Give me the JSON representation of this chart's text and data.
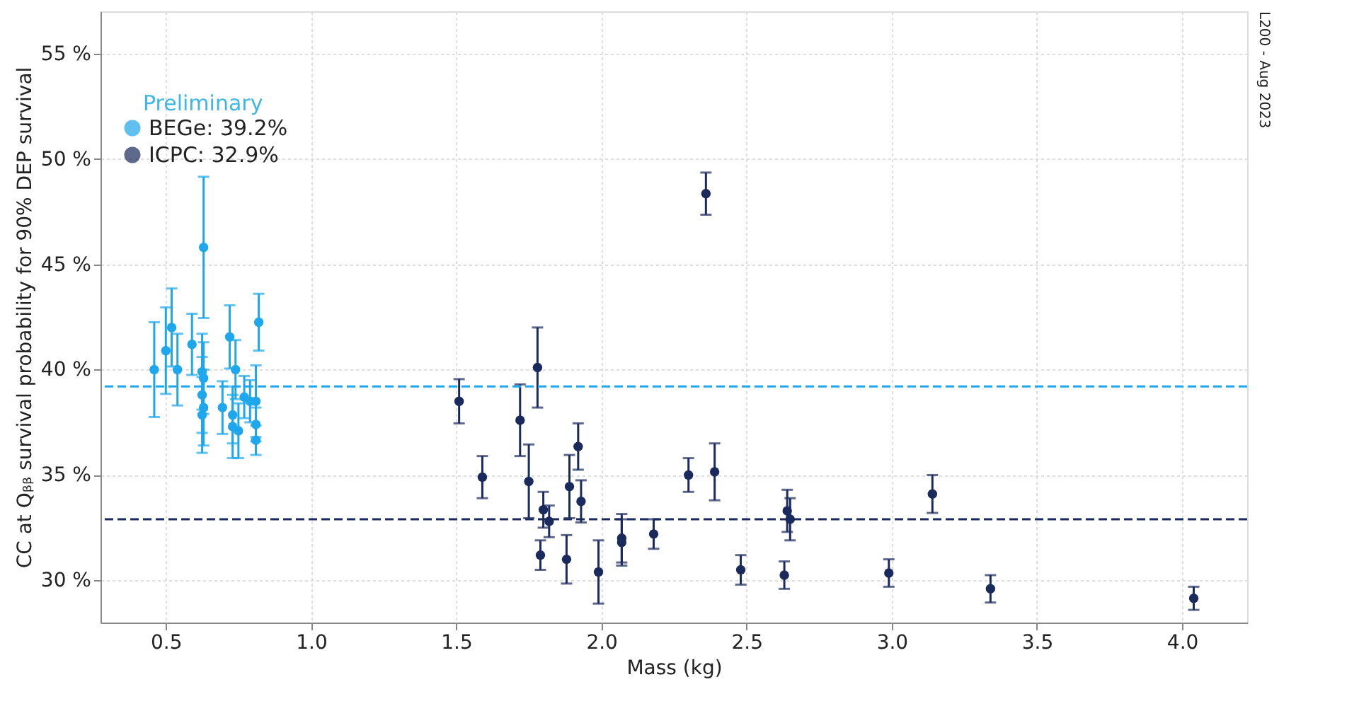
{
  "chart_data": {
    "type": "scatter",
    "xlabel": "Mass (kg)",
    "ylabel": "CC at Qᵦᵦ survival probability for 90% DEP survival",
    "xlim": [
      0.275,
      4.224
    ],
    "ylim": [
      28.0,
      57.0
    ],
    "xticks": [
      0.5,
      {
        "value": 1,
        "label": "1.0"
      },
      1.5,
      {
        "value": 2,
        "label": "2.0"
      },
      2.5,
      {
        "value": 3,
        "label": "3.0"
      },
      3.5,
      {
        "value": 4,
        "label": "4.0"
      }
    ],
    "yticks": [
      {
        "value": 30,
        "label": "30 %"
      },
      {
        "value": 35,
        "label": "35 %"
      },
      {
        "value": 40,
        "label": "40 %"
      },
      {
        "value": 45,
        "label": "45 %"
      },
      {
        "value": 50,
        "label": "50 %"
      },
      {
        "value": 55,
        "label": "55 %"
      }
    ],
    "grid": true,
    "legend": "top left",
    "marker": "circle",
    "annotations": [
      "Preliminary",
      "L200 - Aug 2023"
    ],
    "ref_lines": [
      {
        "axis": "y",
        "value": 39.2,
        "color": "#1ea7ec",
        "line_style": "dashed"
      },
      {
        "axis": "y",
        "value": 32.9,
        "color": "#1b2a5c",
        "line_style": "dashed"
      }
    ],
    "series": [
      {
        "name": "BEGe: 39.2%",
        "color": "#1ea7ec",
        "x": [
          0.46,
          0.5,
          0.52,
          0.54,
          0.59,
          0.63,
          0.625,
          0.63,
          0.625,
          0.63,
          0.625,
          0.695,
          0.72,
          0.74,
          0.73,
          0.73,
          0.75,
          0.77,
          0.79,
          0.81,
          0.81,
          0.81,
          0.82
        ],
        "values": [
          40.0,
          40.9,
          42.0,
          40.0,
          41.2,
          45.8,
          39.9,
          39.6,
          38.8,
          38.2,
          37.85,
          38.2,
          41.55,
          40.0,
          37.85,
          37.3,
          37.1,
          38.7,
          38.5,
          38.5,
          37.4,
          36.65,
          42.25
        ],
        "errors": [
          2.25,
          2.05,
          1.85,
          1.7,
          1.45,
          3.35,
          1.8,
          1.7,
          1.8,
          1.8,
          1.8,
          1.25,
          1.5,
          1.4,
          1.35,
          1.5,
          1.3,
          1.0,
          1.0,
          1.7,
          0.8,
          0.7,
          1.35
        ]
      },
      {
        "name": "ICPC: 32.9%",
        "color": "#1b2a5c",
        "x": [
          1.51,
          1.59,
          1.72,
          1.78,
          1.75,
          1.8,
          1.82,
          1.79,
          1.88,
          1.89,
          1.92,
          1.93,
          1.99,
          2.07,
          2.07,
          2.18,
          2.3,
          2.36,
          2.39,
          2.48,
          2.63,
          2.64,
          2.65,
          2.99,
          3.14,
          3.34,
          4.04
        ],
        "values": [
          38.5,
          34.9,
          37.6,
          40.1,
          34.7,
          33.35,
          32.8,
          31.2,
          31.0,
          34.45,
          36.35,
          33.75,
          30.4,
          32.0,
          31.8,
          32.2,
          35.0,
          48.35,
          35.15,
          30.5,
          30.25,
          33.3,
          32.9,
          30.35,
          34.1,
          29.6,
          29.15
        ],
        "errors": [
          1.05,
          1.0,
          1.7,
          1.9,
          1.75,
          0.85,
          0.75,
          0.7,
          1.15,
          1.5,
          1.1,
          1.0,
          1.5,
          1.15,
          1.1,
          0.7,
          0.8,
          1.0,
          1.35,
          0.7,
          0.65,
          1.0,
          1.0,
          0.65,
          0.9,
          0.65,
          0.55
        ]
      }
    ]
  }
}
